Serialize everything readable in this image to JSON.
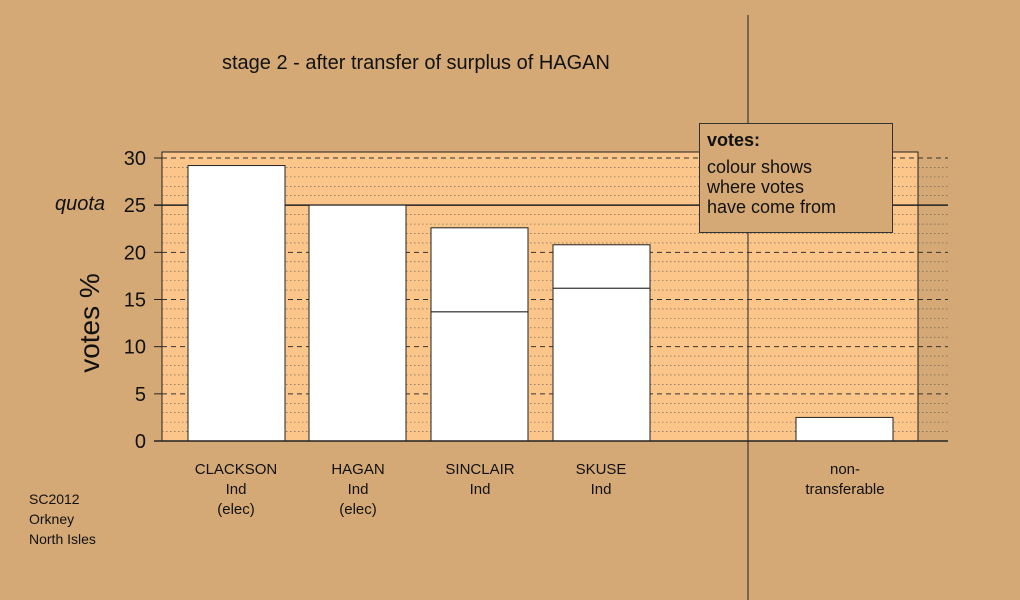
{
  "chart_data": {
    "type": "bar",
    "title": "stage 2 - after transfer of surplus of HAGAN",
    "ylabel": "votes %",
    "ylim": [
      0,
      30
    ],
    "yticks": [
      0,
      5,
      10,
      15,
      20,
      25,
      30
    ],
    "quota": {
      "label": "quota",
      "value": 25
    },
    "grid": true,
    "stacked": true,
    "categories": [
      {
        "name": "CLACKSON",
        "lines": [
          "CLACKSON",
          "Ind",
          "(elec)"
        ]
      },
      {
        "name": "HAGAN",
        "lines": [
          "HAGAN",
          "Ind",
          "(elec)"
        ]
      },
      {
        "name": "SINCLAIR",
        "lines": [
          "SINCLAIR",
          "Ind"
        ]
      },
      {
        "name": "SKUSE",
        "lines": [
          "SKUSE",
          "Ind"
        ]
      },
      {
        "name": "non-transferable",
        "lines": [
          "non-",
          "transferable"
        ]
      }
    ],
    "segments": [
      [
        29.2
      ],
      [
        25.0
      ],
      [
        13.7,
        8.9
      ],
      [
        16.2,
        4.6
      ],
      [
        2.5
      ]
    ],
    "totals": [
      29.2,
      25.0,
      22.6,
      20.8,
      2.5
    ]
  },
  "legend": {
    "title": "votes:",
    "text": "colour shows\nwhere votes\nhave come from",
    "placement": "top-right"
  },
  "source": [
    "SC2012",
    "Orkney",
    "North Isles"
  ],
  "colors": {
    "background": "#d4a976",
    "plot_area": "#fcc68a",
    "bar_fill": "#ffffff",
    "line": "#222222"
  }
}
